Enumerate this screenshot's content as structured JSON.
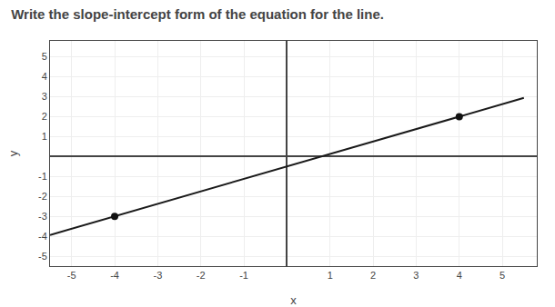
{
  "chart_data": {
    "type": "line",
    "title": "Write the slope-intercept form of the equation for the line.",
    "xlabel": "x",
    "ylabel": "y",
    "xlim": [
      -5.5,
      5.8
    ],
    "ylim": [
      -5.5,
      5.8
    ],
    "xticks": [
      -5,
      -4,
      -3,
      -2,
      -1,
      1,
      2,
      3,
      4,
      5
    ],
    "yticks": [
      -5,
      -4,
      -3,
      -2,
      -1,
      1,
      2,
      3,
      4,
      5
    ],
    "grid": true,
    "series": [
      {
        "type": "line",
        "line_style": "solid",
        "color": "#1a1a1a",
        "x": [
          -5.5,
          5.5
        ],
        "values": [
          -3.9375,
          2.9375
        ]
      },
      {
        "type": "scatter",
        "marker": "circle",
        "color": "#111111",
        "x": [
          -4,
          4
        ],
        "values": [
          -3,
          2
        ]
      }
    ]
  }
}
